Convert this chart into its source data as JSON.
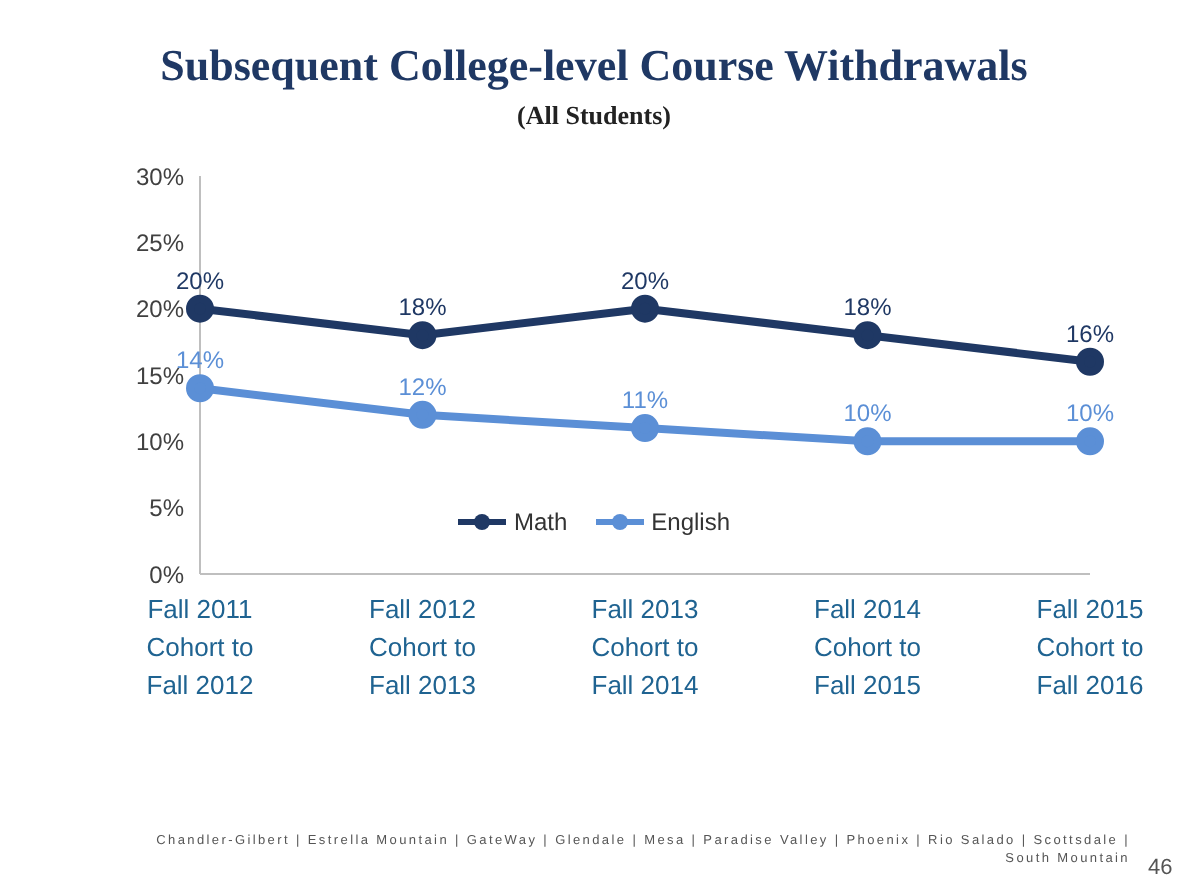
{
  "chart_data": {
    "type": "line",
    "title": "Subsequent College-level Course Withdrawals",
    "subtitle": "(All Students)",
    "categories": [
      "Fall 2011 Cohort to Fall 2012",
      "Fall 2012 Cohort to Fall 2013",
      "Fall 2013 Cohort to Fall 2014",
      "Fall 2014 Cohort to Fall 2015",
      "Fall 2015 Cohort to Fall 2016"
    ],
    "series": [
      {
        "name": "Math",
        "color": "#1f3864",
        "values": [
          20,
          18,
          20,
          18,
          16
        ],
        "value_labels": [
          "20%",
          "18%",
          "20%",
          "18%",
          "16%"
        ]
      },
      {
        "name": "English",
        "color": "#5b8fd6",
        "values": [
          14,
          12,
          11,
          10,
          10
        ],
        "value_labels": [
          "14%",
          "12%",
          "11%",
          "10%",
          "10%"
        ]
      }
    ],
    "ylim": [
      0,
      30
    ],
    "yticks": [
      {
        "value": 0,
        "label": "0%"
      },
      {
        "value": 5,
        "label": "5%"
      },
      {
        "value": 10,
        "label": "10%"
      },
      {
        "value": 15,
        "label": "15%"
      },
      {
        "value": 20,
        "label": "20%"
      },
      {
        "value": 25,
        "label": "25%"
      },
      {
        "value": 30,
        "label": "30%"
      }
    ],
    "legend": "bottom",
    "marker": "circle",
    "line_style": "solid",
    "annotations": [
      "Chandler-Gilbert | Estrella Mountain | GateWay | Glendale | Mesa | Paradise Valley | Phoenix | Rio Salado | Scottsdale | South Mountain",
      "46"
    ]
  }
}
